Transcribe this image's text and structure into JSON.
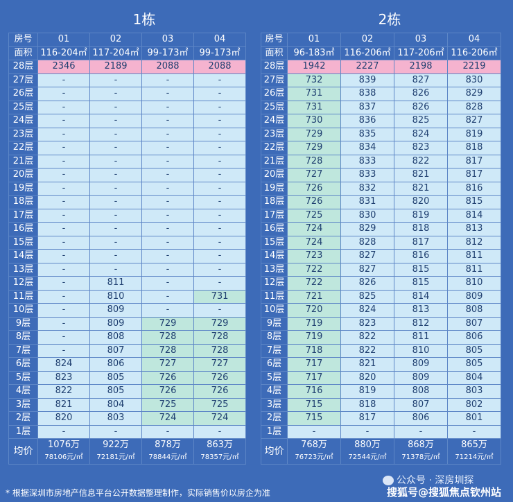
{
  "buildings": [
    {
      "title": "1栋",
      "units": [
        "01",
        "02",
        "03",
        "04"
      ],
      "areas": [
        "116-204㎡",
        "117-204㎡",
        "99-173㎡",
        "99-173㎡"
      ],
      "floors": [
        {
          "floor": "28层",
          "vals": [
            "2346",
            "2189",
            "2088",
            "2088"
          ],
          "cls": [
            "p",
            "p",
            "p",
            "p"
          ]
        },
        {
          "floor": "27层",
          "vals": [
            "-",
            "-",
            "-",
            "-"
          ],
          "cls": [
            "c",
            "c",
            "c",
            "c"
          ]
        },
        {
          "floor": "26层",
          "vals": [
            "-",
            "-",
            "-",
            "-"
          ],
          "cls": [
            "c",
            "c",
            "c",
            "c"
          ]
        },
        {
          "floor": "25层",
          "vals": [
            "-",
            "-",
            "-",
            "-"
          ],
          "cls": [
            "c",
            "c",
            "c",
            "c"
          ]
        },
        {
          "floor": "24层",
          "vals": [
            "-",
            "-",
            "-",
            "-"
          ],
          "cls": [
            "c",
            "c",
            "c",
            "c"
          ]
        },
        {
          "floor": "23层",
          "vals": [
            "-",
            "-",
            "-",
            "-"
          ],
          "cls": [
            "c",
            "c",
            "c",
            "c"
          ]
        },
        {
          "floor": "22层",
          "vals": [
            "-",
            "-",
            "-",
            "-"
          ],
          "cls": [
            "c",
            "c",
            "c",
            "c"
          ]
        },
        {
          "floor": "21层",
          "vals": [
            "-",
            "-",
            "-",
            "-"
          ],
          "cls": [
            "c",
            "c",
            "c",
            "c"
          ]
        },
        {
          "floor": "20层",
          "vals": [
            "-",
            "-",
            "-",
            "-"
          ],
          "cls": [
            "c",
            "c",
            "c",
            "c"
          ]
        },
        {
          "floor": "19层",
          "vals": [
            "-",
            "-",
            "-",
            "-"
          ],
          "cls": [
            "c",
            "c",
            "c",
            "c"
          ]
        },
        {
          "floor": "18层",
          "vals": [
            "-",
            "-",
            "-",
            "-"
          ],
          "cls": [
            "c",
            "c",
            "c",
            "c"
          ]
        },
        {
          "floor": "17层",
          "vals": [
            "-",
            "-",
            "-",
            "-"
          ],
          "cls": [
            "c",
            "c",
            "c",
            "c"
          ]
        },
        {
          "floor": "16层",
          "vals": [
            "-",
            "-",
            "-",
            "-"
          ],
          "cls": [
            "c",
            "c",
            "c",
            "c"
          ]
        },
        {
          "floor": "15层",
          "vals": [
            "-",
            "-",
            "-",
            "-"
          ],
          "cls": [
            "c",
            "c",
            "c",
            "c"
          ]
        },
        {
          "floor": "14层",
          "vals": [
            "-",
            "-",
            "-",
            "-"
          ],
          "cls": [
            "c",
            "c",
            "c",
            "c"
          ]
        },
        {
          "floor": "13层",
          "vals": [
            "-",
            "-",
            "-",
            "-"
          ],
          "cls": [
            "c",
            "c",
            "c",
            "c"
          ]
        },
        {
          "floor": "12层",
          "vals": [
            "-",
            "811",
            "-",
            "-"
          ],
          "cls": [
            "c",
            "c",
            "c",
            "c"
          ]
        },
        {
          "floor": "11层",
          "vals": [
            "-",
            "810",
            "-",
            "731"
          ],
          "cls": [
            "c",
            "c",
            "c",
            "g"
          ]
        },
        {
          "floor": "10层",
          "vals": [
            "-",
            "809",
            "-",
            "-"
          ],
          "cls": [
            "c",
            "c",
            "c",
            "c"
          ]
        },
        {
          "floor": "9层",
          "vals": [
            "-",
            "809",
            "729",
            "729"
          ],
          "cls": [
            "c",
            "c",
            "g",
            "g"
          ]
        },
        {
          "floor": "8层",
          "vals": [
            "-",
            "808",
            "728",
            "728"
          ],
          "cls": [
            "c",
            "c",
            "g",
            "g"
          ]
        },
        {
          "floor": "7层",
          "vals": [
            "-",
            "807",
            "728",
            "728"
          ],
          "cls": [
            "c",
            "c",
            "g",
            "g"
          ]
        },
        {
          "floor": "6层",
          "vals": [
            "824",
            "806",
            "727",
            "727"
          ],
          "cls": [
            "c",
            "c",
            "g",
            "g"
          ]
        },
        {
          "floor": "5层",
          "vals": [
            "823",
            "805",
            "726",
            "726"
          ],
          "cls": [
            "c",
            "c",
            "g",
            "g"
          ]
        },
        {
          "floor": "4层",
          "vals": [
            "822",
            "805",
            "726",
            "726"
          ],
          "cls": [
            "c",
            "c",
            "g",
            "g"
          ]
        },
        {
          "floor": "3层",
          "vals": [
            "821",
            "804",
            "725",
            "725"
          ],
          "cls": [
            "c",
            "c",
            "g",
            "g"
          ]
        },
        {
          "floor": "2层",
          "vals": [
            "820",
            "803",
            "724",
            "724"
          ],
          "cls": [
            "c",
            "c",
            "g",
            "g"
          ]
        },
        {
          "floor": "1层",
          "vals": [
            "-",
            "-",
            "-",
            "-"
          ],
          "cls": [
            "c",
            "c",
            "c",
            "c"
          ]
        }
      ],
      "totals": [
        "1076万",
        "922万",
        "878万",
        "863万"
      ],
      "unit_prices": [
        "78106元/㎡",
        "72181元/㎡",
        "78844元/㎡",
        "78357元/㎡"
      ]
    },
    {
      "title": "2栋",
      "units": [
        "01",
        "02",
        "03",
        "04"
      ],
      "areas": [
        "96-183㎡",
        "116-206㎡",
        "117-206㎡",
        "116-206㎡"
      ],
      "floors": [
        {
          "floor": "28层",
          "vals": [
            "1942",
            "2227",
            "2198",
            "2219"
          ],
          "cls": [
            "p",
            "p",
            "p",
            "p"
          ]
        },
        {
          "floor": "27层",
          "vals": [
            "732",
            "839",
            "827",
            "830"
          ],
          "cls": [
            "g",
            "c",
            "c",
            "c"
          ]
        },
        {
          "floor": "26层",
          "vals": [
            "731",
            "838",
            "826",
            "829"
          ],
          "cls": [
            "g",
            "c",
            "c",
            "c"
          ]
        },
        {
          "floor": "25层",
          "vals": [
            "731",
            "837",
            "826",
            "828"
          ],
          "cls": [
            "g",
            "c",
            "c",
            "c"
          ]
        },
        {
          "floor": "24层",
          "vals": [
            "730",
            "836",
            "825",
            "827"
          ],
          "cls": [
            "g",
            "c",
            "c",
            "c"
          ]
        },
        {
          "floor": "23层",
          "vals": [
            "729",
            "835",
            "824",
            "819"
          ],
          "cls": [
            "g",
            "c",
            "c",
            "c"
          ]
        },
        {
          "floor": "22层",
          "vals": [
            "729",
            "834",
            "823",
            "818"
          ],
          "cls": [
            "g",
            "c",
            "c",
            "c"
          ]
        },
        {
          "floor": "21层",
          "vals": [
            "728",
            "833",
            "822",
            "817"
          ],
          "cls": [
            "g",
            "c",
            "c",
            "c"
          ]
        },
        {
          "floor": "20层",
          "vals": [
            "727",
            "833",
            "821",
            "817"
          ],
          "cls": [
            "g",
            "c",
            "c",
            "c"
          ]
        },
        {
          "floor": "19层",
          "vals": [
            "726",
            "832",
            "821",
            "816"
          ],
          "cls": [
            "g",
            "c",
            "c",
            "c"
          ]
        },
        {
          "floor": "18层",
          "vals": [
            "726",
            "831",
            "820",
            "815"
          ],
          "cls": [
            "g",
            "c",
            "c",
            "c"
          ]
        },
        {
          "floor": "17层",
          "vals": [
            "725",
            "830",
            "819",
            "814"
          ],
          "cls": [
            "g",
            "c",
            "c",
            "c"
          ]
        },
        {
          "floor": "16层",
          "vals": [
            "724",
            "829",
            "818",
            "813"
          ],
          "cls": [
            "g",
            "c",
            "c",
            "c"
          ]
        },
        {
          "floor": "15层",
          "vals": [
            "724",
            "828",
            "817",
            "812"
          ],
          "cls": [
            "g",
            "c",
            "c",
            "c"
          ]
        },
        {
          "floor": "14层",
          "vals": [
            "723",
            "827",
            "816",
            "811"
          ],
          "cls": [
            "g",
            "c",
            "c",
            "c"
          ]
        },
        {
          "floor": "13层",
          "vals": [
            "722",
            "827",
            "815",
            "811"
          ],
          "cls": [
            "g",
            "c",
            "c",
            "c"
          ]
        },
        {
          "floor": "12层",
          "vals": [
            "722",
            "826",
            "815",
            "810"
          ],
          "cls": [
            "g",
            "c",
            "c",
            "c"
          ]
        },
        {
          "floor": "11层",
          "vals": [
            "721",
            "825",
            "814",
            "809"
          ],
          "cls": [
            "g",
            "c",
            "c",
            "c"
          ]
        },
        {
          "floor": "10层",
          "vals": [
            "720",
            "824",
            "813",
            "808"
          ],
          "cls": [
            "g",
            "c",
            "c",
            "c"
          ]
        },
        {
          "floor": "9层",
          "vals": [
            "719",
            "823",
            "812",
            "807"
          ],
          "cls": [
            "g",
            "c",
            "c",
            "c"
          ]
        },
        {
          "floor": "8层",
          "vals": [
            "719",
            "822",
            "811",
            "806"
          ],
          "cls": [
            "g",
            "c",
            "c",
            "c"
          ]
        },
        {
          "floor": "7层",
          "vals": [
            "718",
            "822",
            "810",
            "805"
          ],
          "cls": [
            "g",
            "c",
            "c",
            "c"
          ]
        },
        {
          "floor": "6层",
          "vals": [
            "717",
            "821",
            "809",
            "805"
          ],
          "cls": [
            "g",
            "c",
            "c",
            "c"
          ]
        },
        {
          "floor": "5层",
          "vals": [
            "717",
            "820",
            "809",
            "804"
          ],
          "cls": [
            "g",
            "c",
            "c",
            "c"
          ]
        },
        {
          "floor": "4层",
          "vals": [
            "716",
            "819",
            "808",
            "803"
          ],
          "cls": [
            "g",
            "c",
            "c",
            "c"
          ]
        },
        {
          "floor": "3层",
          "vals": [
            "715",
            "818",
            "807",
            "802"
          ],
          "cls": [
            "g",
            "c",
            "c",
            "c"
          ]
        },
        {
          "floor": "2层",
          "vals": [
            "715",
            "817",
            "806",
            "801"
          ],
          "cls": [
            "g",
            "c",
            "c",
            "c"
          ]
        },
        {
          "floor": "1层",
          "vals": [
            "-",
            "-",
            "-",
            "-"
          ],
          "cls": [
            "c",
            "c",
            "c",
            "c"
          ]
        }
      ],
      "totals": [
        "768万",
        "880万",
        "868万",
        "865万"
      ],
      "unit_prices": [
        "76723元/㎡",
        "72544元/㎡",
        "71378元/㎡",
        "71214元/㎡"
      ]
    }
  ],
  "labels": {
    "unit_no": "房号",
    "area": "面积",
    "avg": "均价"
  },
  "footnote": "* 根据深圳市房地产信息平台公开数据整理制作，实际销售价以房企为准",
  "watermark_account": "公众号 · 深房圳探",
  "watermark_site": "搜狐号@搜狐焦点钦州站",
  "colors": {
    "background": "#3d6bb8",
    "cell": "#cfe9f8",
    "highlight_green": "#bfe7dd",
    "top_floor_pink": "#f5b3cf"
  }
}
